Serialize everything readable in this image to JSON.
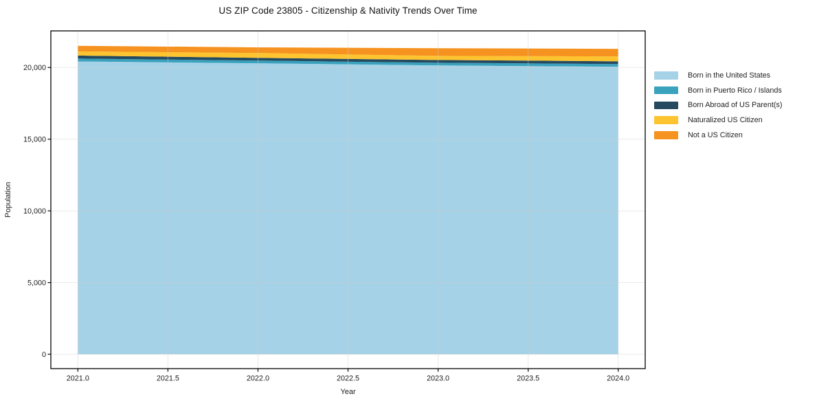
{
  "chart_data": {
    "type": "area",
    "stacked": true,
    "title": "US ZIP Code 23805 - Citizenship & Nativity Trends Over Time",
    "xlabel": "Year",
    "ylabel": "Population",
    "x": [
      2021,
      2022,
      2023,
      2024
    ],
    "series": [
      {
        "name": "Born in the United States",
        "color": "#a6d2e7",
        "values": [
          20420,
          20290,
          20140,
          20050
        ]
      },
      {
        "name": "Born in Puerto Rico / Islands",
        "color": "#3aa2bd",
        "values": [
          200,
          190,
          190,
          190
        ]
      },
      {
        "name": "Born Abroad of US Parent(s)",
        "color": "#254a60",
        "values": [
          210,
          190,
          190,
          190
        ]
      },
      {
        "name": "Naturalized US Citizen",
        "color": "#fdc430",
        "values": [
          290,
          340,
          290,
          340
        ]
      },
      {
        "name": "Not a US Citizen",
        "color": "#f6921f",
        "values": [
          390,
          390,
          530,
          530
        ]
      }
    ],
    "xlim": [
      2020.85,
      2024.15
    ],
    "ylim": [
      -1000,
      22550
    ],
    "xticks": [
      2021.0,
      2021.5,
      2022.0,
      2022.5,
      2023.0,
      2023.5,
      2024.0
    ],
    "xtick_labels": [
      "2021.0",
      "2021.5",
      "2022.0",
      "2022.5",
      "2023.0",
      "2023.5",
      "2024.0"
    ],
    "yticks": [
      0,
      5000,
      10000,
      15000,
      20000
    ],
    "ytick_labels": [
      "0",
      "5,000",
      "10,000",
      "15,000",
      "20,000"
    ],
    "grid": true,
    "legend_position": "right-outside",
    "spine_color": "#000000",
    "grid_color": "#cfcfcf",
    "background": "#ffffff"
  }
}
